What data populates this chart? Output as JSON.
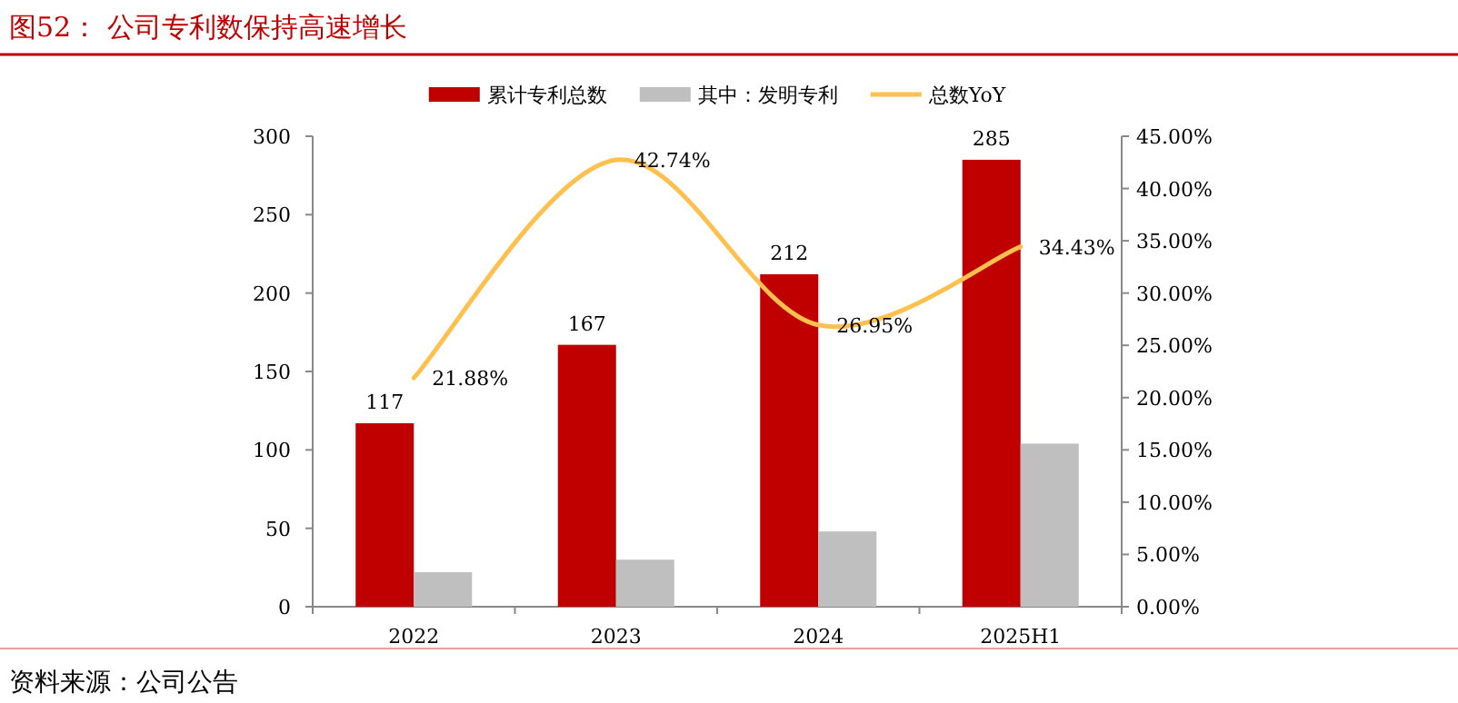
{
  "chart_data": {
    "type": "bar",
    "title": "图52：  公司专利数保持高速增长",
    "categories": [
      "2022",
      "2023",
      "2024",
      "2025H1"
    ],
    "series": [
      {
        "name": "累计专利总数",
        "color": "#c00000",
        "values": [
          117,
          167,
          212,
          285
        ],
        "value_labels": [
          "117",
          "167",
          "212",
          "285"
        ]
      },
      {
        "name": "其中：发明专利",
        "color": "#bfbfbf",
        "values": [
          22,
          30,
          48,
          104
        ]
      },
      {
        "name": "总数YoY",
        "type": "line",
        "axis": "y2",
        "color": "#ffc04d",
        "values": [
          21.88,
          42.74,
          26.95,
          34.43
        ],
        "value_labels": [
          "21.88%",
          "42.74%",
          "26.95%",
          "34.43%"
        ]
      }
    ],
    "ylim": [
      0,
      300
    ],
    "yticks": [
      0,
      50,
      100,
      150,
      200,
      250,
      300
    ],
    "y2lim": [
      0,
      45
    ],
    "y2ticks": [
      {
        "value": 0,
        "label": "0.00%"
      },
      {
        "value": 5,
        "label": "5.00%"
      },
      {
        "value": 10,
        "label": "10.00%"
      },
      {
        "value": 15,
        "label": "15.00%"
      },
      {
        "value": 20,
        "label": "20.00%"
      },
      {
        "value": 25,
        "label": "25.00%"
      },
      {
        "value": 30,
        "label": "30.00%"
      },
      {
        "value": 35,
        "label": "35.00%"
      },
      {
        "value": 40,
        "label": "40.00%"
      },
      {
        "value": 45,
        "label": "45.00%"
      }
    ],
    "legend": "top",
    "grid": false,
    "marker": "none",
    "line_style": "solid",
    "annotations": [
      "资料来源：公司公告"
    ]
  }
}
